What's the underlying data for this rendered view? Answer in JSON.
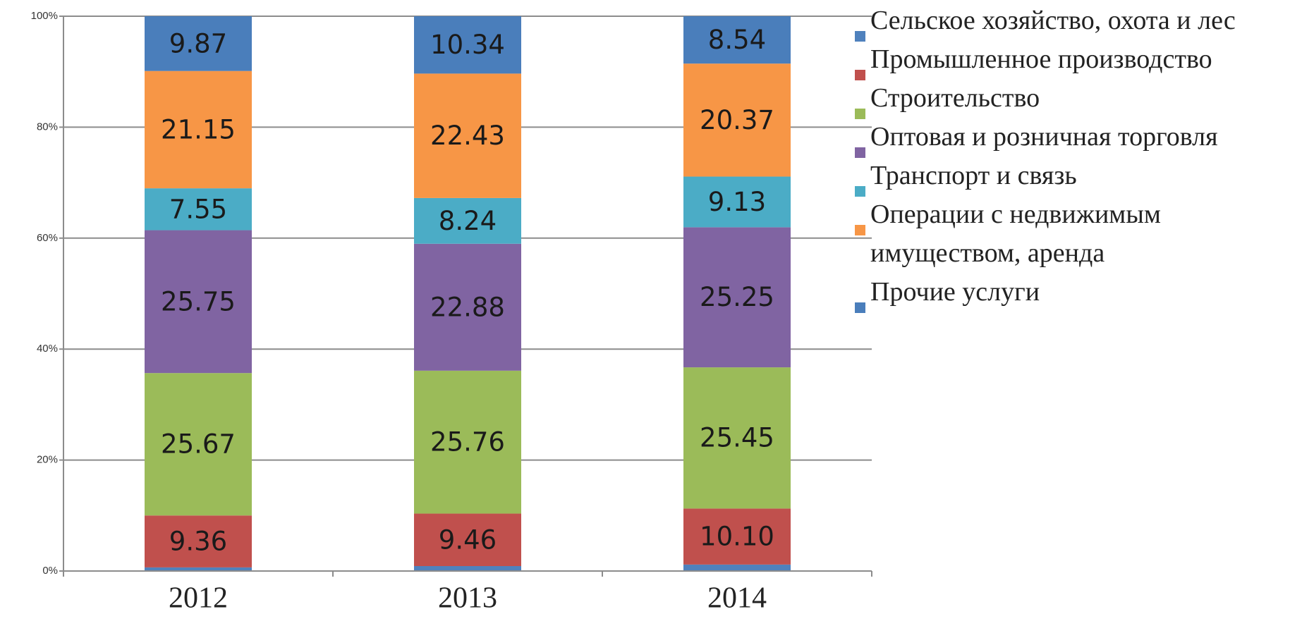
{
  "chart_data": {
    "type": "stacked_bar",
    "categories": [
      "2012",
      "2013",
      "2014"
    ],
    "ylim": [
      0,
      100
    ],
    "yticks": [
      {
        "value": 0,
        "label": "0%"
      },
      {
        "value": 20,
        "label": "20%"
      },
      {
        "value": 40,
        "label": "40%"
      },
      {
        "value": 60,
        "label": "60%"
      },
      {
        "value": 80,
        "label": "80%"
      },
      {
        "value": 100,
        "label": "100%"
      }
    ],
    "grid": true,
    "legend": "right",
    "series": [
      {
        "name": "Сельское хозяйство, охота и лес",
        "color": "#4f81bd",
        "values": [
          0.65,
          0.89,
          1.16
        ]
      },
      {
        "name": "Промышленное производство",
        "color": "#c0504d",
        "values": [
          9.36,
          9.46,
          10.1
        ],
        "value_labels": [
          "9.36",
          "9.46",
          "10.10"
        ]
      },
      {
        "name": "Строительство",
        "color": "#9bbb59",
        "values": [
          25.67,
          25.76,
          25.45
        ]
      },
      {
        "name": "Оптовая и розничная торговля",
        "color": "#8064a2",
        "values": [
          25.75,
          22.88,
          25.25
        ]
      },
      {
        "name": "Транспорт и связь",
        "color": "#4bacc6",
        "values": [
          7.55,
          8.24,
          9.13
        ]
      },
      {
        "name": "Операции с недвижимым имуществом, аренда",
        "color": "#f79646",
        "values": [
          21.15,
          22.43,
          20.37
        ]
      },
      {
        "name": "Прочие услуги",
        "color": "#4a7ebb",
        "values": [
          9.87,
          10.34,
          8.54
        ]
      }
    ]
  }
}
